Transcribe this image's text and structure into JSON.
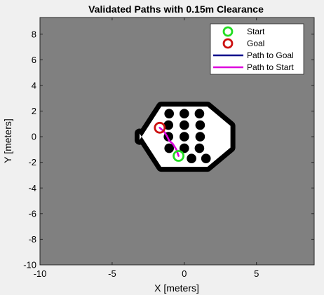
{
  "chart_data": {
    "type": "line",
    "title": "Validated Paths with 0.15m Clearance",
    "xlabel": "X [meters]",
    "ylabel": "Y [meters]",
    "xlim": [
      -10,
      9
    ],
    "ylim": [
      -10,
      9.3
    ],
    "x_ticks": [
      -10,
      -5,
      0,
      5
    ],
    "y_ticks": [
      -10,
      -8,
      -6,
      -4,
      -2,
      0,
      2,
      4,
      6,
      8
    ],
    "grid": false,
    "legend_position": "top-right",
    "colors": {
      "obstacle": "#808080",
      "free_space": "#ffffff",
      "wall": "#000000",
      "start": "#22dd22",
      "goal": "#cc1111",
      "path_to_goal": "#00008b",
      "path_to_start": "#dd00dd"
    },
    "map": {
      "free_region_outline": [
        [
          -1.6,
          2.35
        ],
        [
          1.6,
          2.35
        ],
        [
          3.2,
          0.85
        ],
        [
          3.2,
          -0.85
        ],
        [
          1.6,
          -2.35
        ],
        [
          -1.6,
          -2.35
        ],
        [
          -3.1,
          0.25
        ],
        [
          -3.1,
          -0.25
        ]
      ],
      "pillars": [
        [
          -1.05,
          1.8
        ],
        [
          0,
          1.8
        ],
        [
          1.05,
          1.8
        ],
        [
          -1.1,
          0.9
        ],
        [
          0,
          0.9
        ],
        [
          1.1,
          0.9
        ],
        [
          -1.1,
          0
        ],
        [
          0,
          0
        ],
        [
          1.1,
          0
        ],
        [
          -1.05,
          -0.9
        ],
        [
          0,
          -0.9
        ],
        [
          1.05,
          -0.9
        ],
        [
          0.5,
          -1.7
        ],
        [
          1.5,
          -1.7
        ]
      ],
      "pillar_radius": 0.33
    },
    "start": {
      "x": -0.4,
      "y": -1.5
    },
    "goal": {
      "x": -1.7,
      "y": 0.7
    },
    "series": [
      {
        "name": "Path to Goal",
        "x": [
          -0.4,
          -0.55,
          -0.8,
          -1.05,
          -1.2,
          -1.4,
          -1.7
        ],
        "y": [
          -1.5,
          -1.0,
          -0.55,
          -0.3,
          0.05,
          0.4,
          0.7
        ]
      },
      {
        "name": "Path to Start",
        "x": [
          -1.7,
          -1.4,
          -1.2,
          -1.05,
          -0.8,
          -0.55,
          -0.4
        ],
        "y": [
          0.7,
          0.4,
          0.05,
          -0.3,
          -0.55,
          -1.0,
          -1.5
        ]
      }
    ],
    "legend": [
      {
        "label": "Start",
        "kind": "marker",
        "color": "#22dd22"
      },
      {
        "label": "Goal",
        "kind": "marker",
        "color": "#cc1111"
      },
      {
        "label": "Path to Goal",
        "kind": "line",
        "color": "#00008b"
      },
      {
        "label": "Path to Start",
        "kind": "line",
        "color": "#dd00dd"
      }
    ]
  }
}
